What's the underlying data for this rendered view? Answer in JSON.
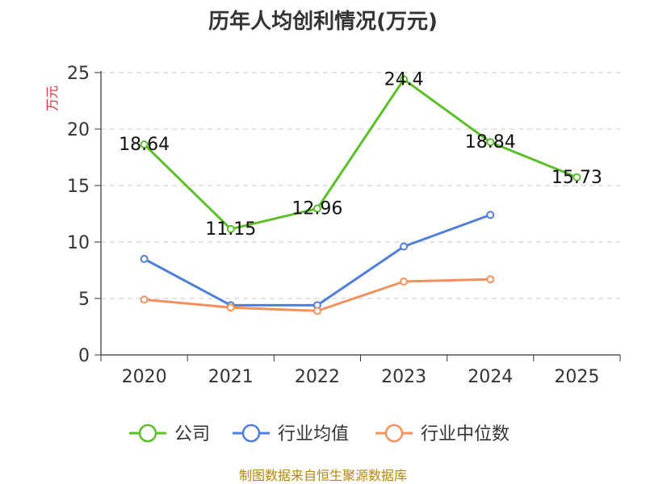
{
  "chart_data": {
    "type": "line",
    "title": "历年人均创利情况(万元)",
    "ylabel": "万元",
    "categories": [
      "2020",
      "2021",
      "2022",
      "2023",
      "2024",
      "2025"
    ],
    "ylim": [
      0,
      25
    ],
    "yticks": [
      "0",
      "5",
      "10",
      "15",
      "20",
      "25"
    ],
    "grid": true,
    "legend_position": "bottom",
    "series": [
      {
        "name": "公司",
        "color": "#5cbf2a",
        "values": [
          18.64,
          11.15,
          12.96,
          24.4,
          18.84,
          15.73
        ],
        "labels": [
          "18.64",
          "11.15",
          "12.96",
          "24.4",
          "18.84",
          "15.73"
        ]
      },
      {
        "name": "行业均值",
        "color": "#4f7fd9",
        "values": [
          8.5,
          4.4,
          4.4,
          9.6,
          12.4,
          null
        ]
      },
      {
        "name": "行业中位数",
        "color": "#f4905c",
        "values": [
          4.9,
          4.2,
          3.9,
          6.5,
          6.7,
          null
        ]
      }
    ],
    "source": "制图数据来自恒生聚源数据库"
  }
}
